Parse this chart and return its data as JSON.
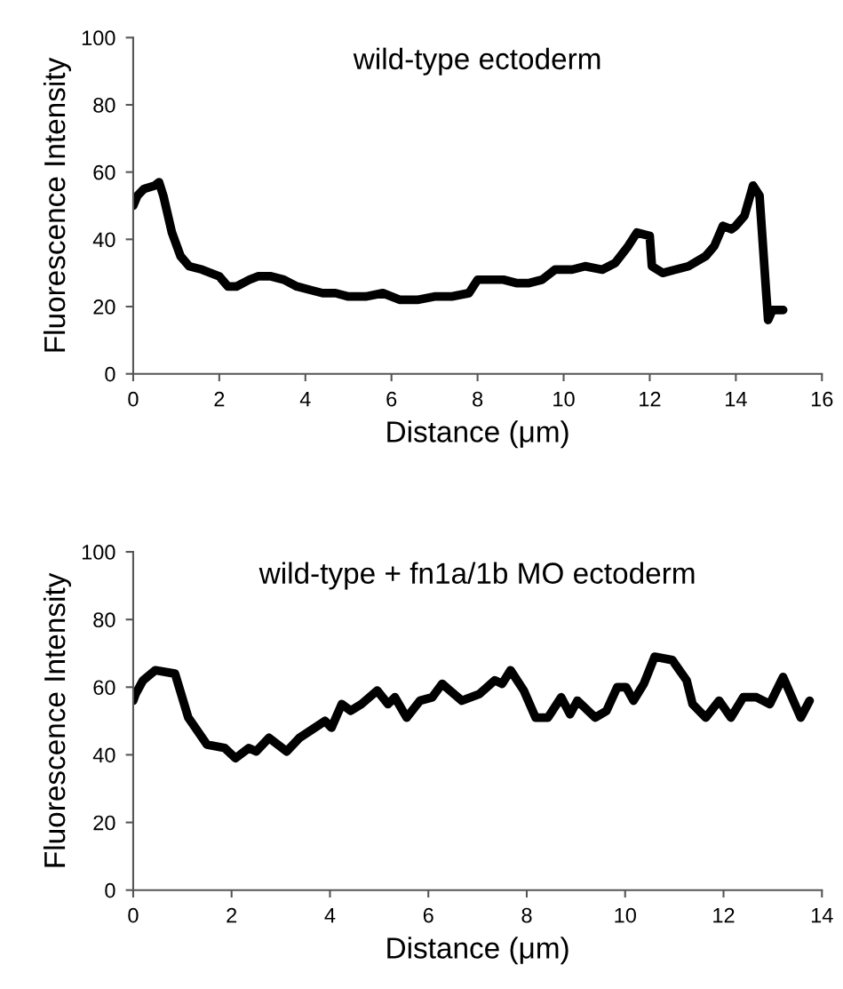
{
  "chart_data": [
    {
      "type": "line",
      "title": "wild-type ectoderm",
      "xlabel": "Distance (μm)",
      "ylabel": "Fluorescence Intensity",
      "xlim": [
        0,
        16
      ],
      "xticks": [
        0,
        2,
        4,
        6,
        8,
        10,
        12,
        14,
        16
      ],
      "ylim": [
        0,
        100
      ],
      "yticks": [
        0,
        20,
        40,
        60,
        80,
        100
      ],
      "grid": false,
      "legend": false,
      "marker": "none",
      "line_style": "solid",
      "series": [
        {
          "color": "#000000",
          "x": [
            0,
            0.1,
            0.25,
            0.5,
            0.6,
            0.7,
            0.9,
            1.1,
            1.3,
            1.6,
            1.8,
            2.0,
            2.2,
            2.4,
            2.7,
            2.9,
            3.2,
            3.5,
            3.8,
            4.1,
            4.4,
            4.7,
            5.0,
            5.4,
            5.8,
            6.2,
            6.6,
            7.0,
            7.4,
            7.8,
            8.0,
            8.3,
            8.6,
            8.9,
            9.2,
            9.5,
            9.8,
            10.2,
            10.5,
            10.9,
            11.2,
            11.5,
            11.7,
            12.0,
            12.05,
            12.3,
            12.6,
            12.9,
            13.3,
            13.5,
            13.7,
            13.9,
            14.0,
            14.2,
            14.4,
            14.55,
            14.7,
            14.75,
            14.85,
            15.1
          ],
          "values": [
            50,
            53,
            55,
            56,
            57,
            53,
            42,
            35,
            32,
            31,
            30,
            29,
            26,
            26,
            28,
            29,
            29,
            28,
            26,
            25,
            24,
            24,
            23,
            23,
            24,
            22,
            22,
            23,
            23,
            24,
            28,
            28,
            28,
            27,
            27,
            28,
            31,
            31,
            32,
            31,
            33,
            38,
            42,
            41,
            32,
            30,
            31,
            32,
            35,
            38,
            44,
            43,
            44,
            47,
            56,
            53,
            25,
            16,
            19,
            19
          ]
        }
      ]
    },
    {
      "type": "line",
      "title": "wild-type + fn1a/1b MO ectoderm",
      "xlabel": "Distance (μm)",
      "ylabel": "Fluorescence Intensity",
      "xlim": [
        0,
        14
      ],
      "xticks": [
        0,
        2,
        4,
        6,
        8,
        10,
        12,
        14
      ],
      "ylim": [
        0,
        100
      ],
      "yticks": [
        0,
        20,
        40,
        60,
        80,
        100
      ],
      "grid": false,
      "legend": false,
      "marker": "none",
      "line_style": "solid",
      "series": [
        {
          "color": "#000000",
          "x": [
            0,
            0.05,
            0.2,
            0.45,
            0.85,
            1.12,
            1.5,
            1.86,
            2.08,
            2.35,
            2.5,
            2.76,
            3.12,
            3.38,
            3.9,
            4.03,
            4.24,
            4.42,
            4.64,
            4.96,
            5.18,
            5.32,
            5.56,
            5.83,
            6.08,
            6.28,
            6.68,
            7.04,
            7.35,
            7.5,
            7.67,
            7.94,
            8.18,
            8.43,
            8.7,
            8.88,
            9.03,
            9.39,
            9.62,
            9.84,
            10.02,
            10.17,
            10.38,
            10.6,
            10.96,
            11.25,
            11.37,
            11.64,
            11.91,
            12.15,
            12.4,
            12.67,
            12.94,
            13.21,
            13.57,
            13.75
          ],
          "values": [
            56,
            58,
            62,
            65,
            64,
            51,
            43,
            42,
            39,
            42,
            41,
            45,
            41,
            45,
            50,
            48,
            55,
            53,
            55,
            59,
            55,
            57,
            51,
            56,
            57,
            61,
            56,
            58,
            62,
            61,
            65,
            59,
            51,
            51,
            57,
            52,
            56,
            51,
            53,
            60,
            60,
            56,
            61,
            69,
            68,
            62,
            55,
            51,
            56,
            51,
            57,
            57,
            55,
            63,
            51,
            56
          ]
        }
      ]
    }
  ]
}
